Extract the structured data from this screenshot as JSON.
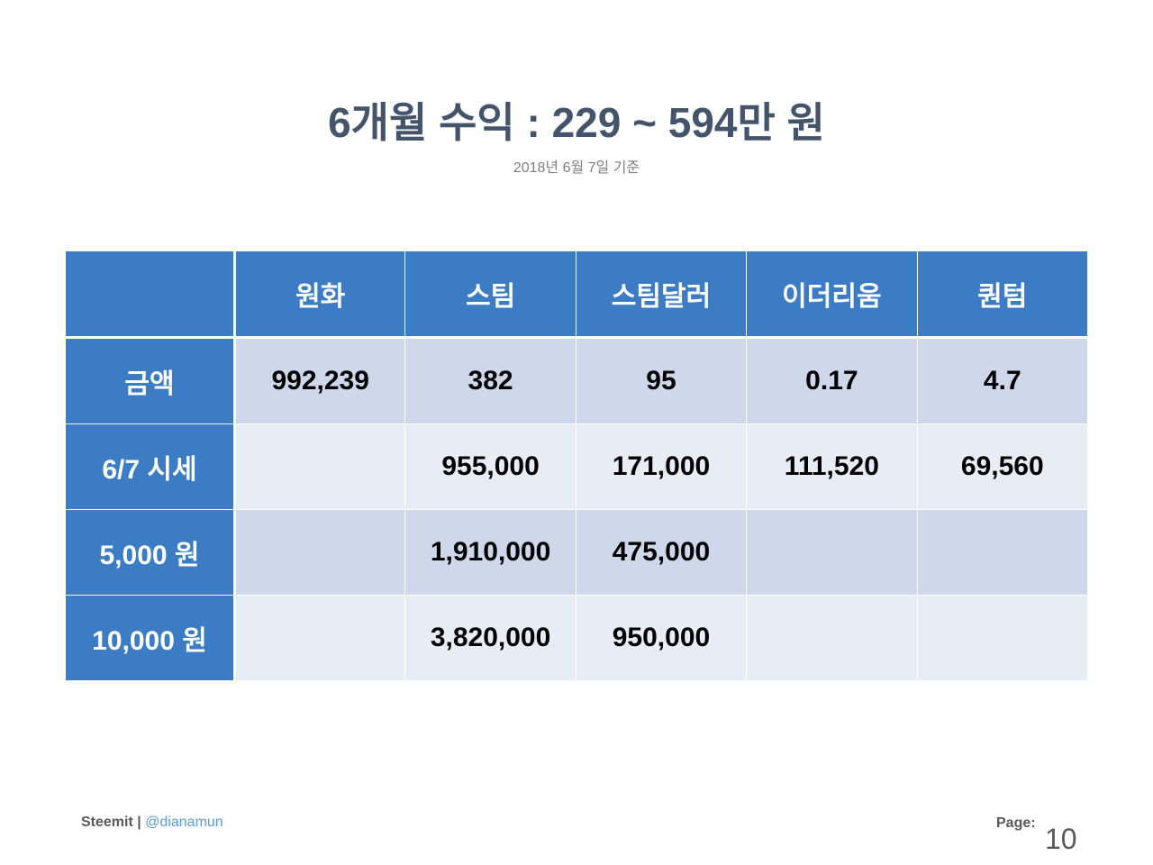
{
  "header": {
    "title": "6개월 수익 : 229 ~ 594만 원",
    "subtitle": "2018년 6월 7일 기준"
  },
  "table": {
    "columns": [
      "원화",
      "스팀",
      "스팀달러",
      "이더리움",
      "퀀텀"
    ],
    "rows": [
      {
        "label": "금액",
        "cells": [
          "992,239",
          "382",
          "95",
          "0.17",
          "4.7"
        ]
      },
      {
        "label": "6/7 시세",
        "cells": [
          null,
          "955,000",
          "171,000",
          "111,520",
          "69,560"
        ]
      },
      {
        "label": "5,000 원",
        "cells": [
          null,
          "1,910,000",
          "475,000",
          null,
          null
        ]
      },
      {
        "label": "10,000 원",
        "cells": [
          null,
          "3,820,000",
          "950,000",
          null,
          null
        ]
      }
    ]
  },
  "footer": {
    "brand": "Steemit",
    "separator": "|",
    "handle": "@dianamun",
    "page_label": "Page:",
    "page_number": "10"
  }
}
